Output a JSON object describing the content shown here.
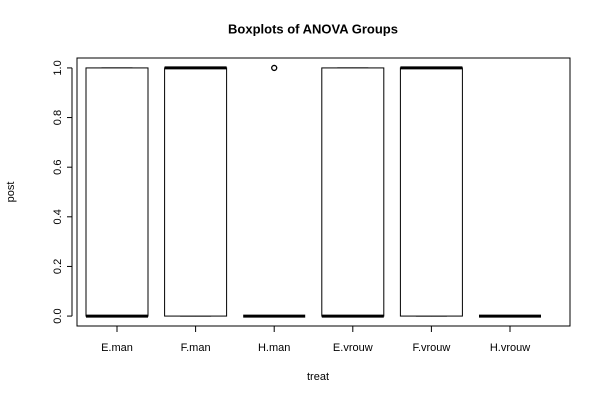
{
  "chart_data": {
    "type": "box",
    "title": "Boxplots of ANOVA Groups",
    "x_label": "treat",
    "y_label": "post",
    "categories": [
      "E.man",
      "F.man",
      "H.man",
      "E.vrouw",
      "F.vrouw",
      "H.vrouw"
    ],
    "boxes": [
      {
        "min": 0,
        "q1": 0,
        "median": 0,
        "q3": 1,
        "max": 1,
        "outliers": []
      },
      {
        "min": 0,
        "q1": 0,
        "median": 1,
        "q3": 1,
        "max": 1,
        "outliers": []
      },
      {
        "min": 0,
        "q1": 0,
        "median": 0,
        "q3": 0,
        "max": 0,
        "outliers": [
          1
        ]
      },
      {
        "min": 0,
        "q1": 0,
        "median": 0,
        "q3": 1,
        "max": 1,
        "outliers": []
      },
      {
        "min": 0,
        "q1": 0,
        "median": 1,
        "q3": 1,
        "max": 1,
        "outliers": []
      },
      {
        "min": 0,
        "q1": 0,
        "median": 0,
        "q3": 0,
        "max": 0,
        "outliers": []
      }
    ],
    "color": "#000000",
    "ylim": [
      -0.04,
      1.04
    ],
    "yticks": [
      {
        "value": 0,
        "label": "0.0"
      },
      {
        "value": 0.2,
        "label": "0.2"
      },
      {
        "value": 0.4,
        "label": "0.4"
      },
      {
        "value": 0.6,
        "label": "0.6"
      },
      {
        "value": 0.8,
        "label": "0.8"
      },
      {
        "value": 1,
        "label": "1.0"
      }
    ]
  }
}
